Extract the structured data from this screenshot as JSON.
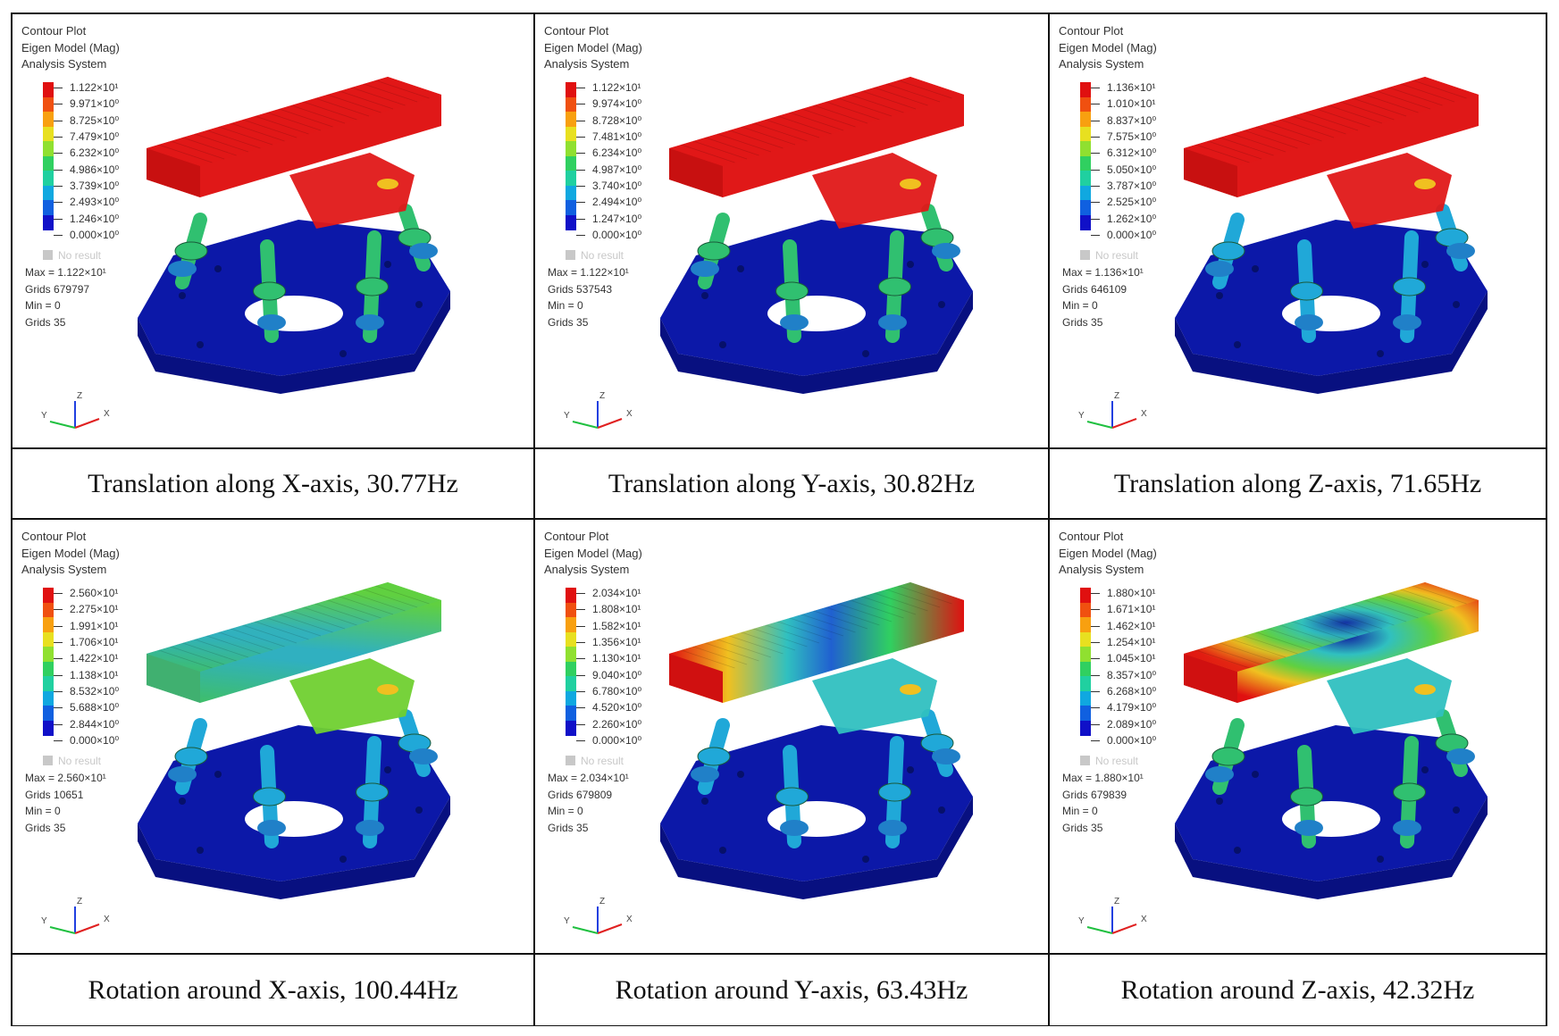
{
  "header_lines": [
    "Contour Plot",
    "Eigen Model (Mag)",
    "Analysis System"
  ],
  "no_result_label": "No result",
  "stat_labels": {
    "max": "Max = ",
    "grids": "Grids ",
    "min": "Min = ",
    "grids2": "Grids "
  },
  "axis_labels": {
    "z": "Z",
    "y": "Y",
    "x": "X"
  },
  "colors": [
    "#1010c8",
    "#1060e0",
    "#10a8e0",
    "#20d0a0",
    "#30d060",
    "#90e030",
    "#e8e020",
    "#f8a010",
    "#f05010",
    "#e01010"
  ],
  "modes": [
    {
      "caption": "Translation along X-axis, 30.77Hz",
      "legend": [
        "1.122×10¹",
        "9.971×10⁰",
        "8.725×10⁰",
        "7.479×10⁰",
        "6.232×10⁰",
        "4.986×10⁰",
        "3.739×10⁰",
        "2.493×10⁰",
        "1.246×10⁰",
        "0.000×10⁰"
      ],
      "max": "1.122×10¹",
      "grids": "679797",
      "min": "0",
      "grids2": "35",
      "top_color": "#e01818",
      "leg_color": "#30c070",
      "pattern": "solid"
    },
    {
      "caption": "Translation along Y-axis, 30.82Hz",
      "legend": [
        "1.122×10¹",
        "9.974×10⁰",
        "8.728×10⁰",
        "7.481×10⁰",
        "6.234×10⁰",
        "4.987×10⁰",
        "3.740×10⁰",
        "2.494×10⁰",
        "1.247×10⁰",
        "0.000×10⁰"
      ],
      "max": "1.122×10¹",
      "grids": "537543",
      "min": "0",
      "grids2": "35",
      "top_color": "#e01818",
      "leg_color": "#30c070",
      "pattern": "solid"
    },
    {
      "caption": "Translation along Z-axis, 71.65Hz",
      "legend": [
        "1.136×10¹",
        "1.010×10¹",
        "8.837×10⁰",
        "7.575×10⁰",
        "6.312×10⁰",
        "5.050×10⁰",
        "3.787×10⁰",
        "2.525×10⁰",
        "1.262×10⁰",
        "0.000×10⁰"
      ],
      "max": "1.136×10¹",
      "grids": "646109",
      "min": "0",
      "grids2": "35",
      "top_color": "#e01818",
      "leg_color": "#20a8d8",
      "pattern": "solid"
    },
    {
      "caption": "Rotation around X-axis, 100.44Hz",
      "legend": [
        "2.560×10¹",
        "2.275×10¹",
        "1.991×10¹",
        "1.706×10¹",
        "1.422×10¹",
        "1.138×10¹",
        "8.532×10⁰",
        "5.688×10⁰",
        "2.844×10⁰",
        "0.000×10⁰"
      ],
      "max": "2.560×10¹",
      "grids": "10651",
      "min": "0",
      "grids2": "35",
      "top_color": "#70d030",
      "leg_color": "#20a8d8",
      "pattern": "stripesX"
    },
    {
      "caption": "Rotation around Y-axis, 63.43Hz",
      "legend": [
        "2.034×10¹",
        "1.808×10¹",
        "1.582×10¹",
        "1.356×10¹",
        "1.130×10¹",
        "9.040×10⁰",
        "6.780×10⁰",
        "4.520×10⁰",
        "2.260×10⁰",
        "0.000×10⁰"
      ],
      "max": "2.034×10¹",
      "grids": "679809",
      "min": "0",
      "grids2": "35",
      "top_color": "#30c0c0",
      "leg_color": "#20a8d8",
      "pattern": "bandsY"
    },
    {
      "caption": "Rotation around Z-axis, 42.32Hz",
      "legend": [
        "1.880×10¹",
        "1.671×10¹",
        "1.462×10¹",
        "1.254×10¹",
        "1.045×10¹",
        "8.357×10⁰",
        "6.268×10⁰",
        "4.179×10⁰",
        "2.089×10⁰",
        "0.000×10⁰"
      ],
      "max": "1.880×10¹",
      "grids": "679839",
      "min": "0",
      "grids2": "35",
      "top_color": "#30c0c0",
      "leg_color": "#30c070",
      "pattern": "rings"
    }
  ]
}
